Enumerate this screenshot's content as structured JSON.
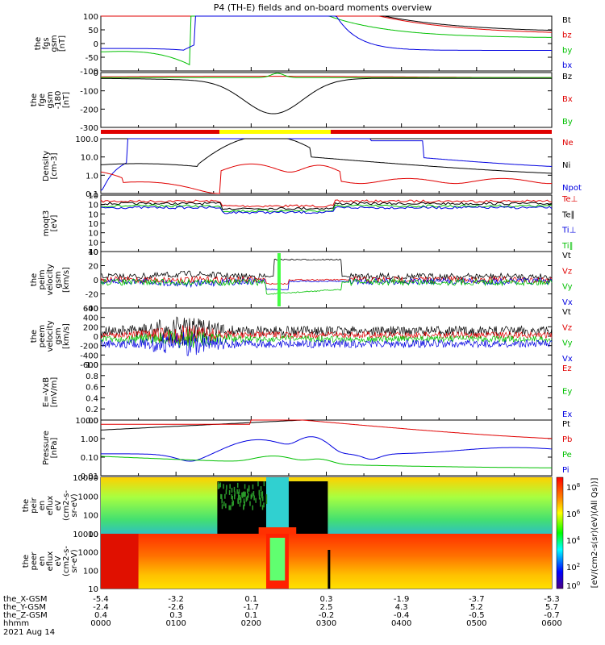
{
  "title": "P4 (TH-E) fields and on-board moments overview",
  "colors": {
    "black": "#000000",
    "red": "#e00000",
    "green": "#00c000",
    "blue": "#0000e0",
    "yellow": "#ffff00",
    "lgreen": "#66ff33"
  },
  "chart_data": {
    "type": "line",
    "x_ticks": [
      "0000",
      "0100",
      "0200",
      "0300",
      "0400",
      "0500",
      "0600"
    ],
    "x_range": [
      0,
      6
    ],
    "panels": [
      {
        "id": "p1",
        "ylabel": [
          "the",
          "fgs",
          "gsm",
          "[nT]"
        ],
        "yticks": [
          "100",
          "50",
          "0",
          "-50",
          "-100"
        ],
        "ylim": [
          -100,
          100
        ],
        "legend": [
          {
            "name": "Bt",
            "color": "#000000"
          },
          {
            "name": "bz",
            "color": "#e00000"
          },
          {
            "name": "by",
            "color": "#00c000"
          },
          {
            "name": "bx",
            "color": "#0000e0"
          }
        ]
      },
      {
        "id": "p2",
        "ylabel": [
          "the",
          "fge",
          "gsm",
          "-180",
          "[nT]"
        ],
        "yticks": [
          "0",
          "-100",
          "-200",
          "-300"
        ],
        "ylim": [
          -340,
          40
        ],
        "legend": [
          {
            "name": "Bz",
            "color": "#000000"
          },
          {
            "name": "Bx",
            "color": "#e00000"
          },
          {
            "name": "By",
            "color": "#00c000"
          }
        ]
      },
      {
        "id": "p3",
        "ylabel": [
          "Density",
          "[cm-3]"
        ],
        "yticks": [
          "100.0",
          "10.0",
          "1.0",
          "0.1"
        ],
        "log": true,
        "ylim": [
          0.1,
          200
        ],
        "legend": [
          {
            "name": "Ne",
            "color": "#e00000"
          },
          {
            "name": "Ni",
            "color": "#000000"
          },
          {
            "name": "Npot",
            "color": "#0000e0"
          }
        ]
      },
      {
        "id": "p4",
        "ylabel": [
          "moqt3",
          "[eV]"
        ],
        "yticks": [
          "10",
          "10",
          "10",
          "10",
          "10",
          "10",
          "10"
        ],
        "legend": [
          {
            "name": "Te⊥",
            "color": "#e00000"
          },
          {
            "name": "Te∥",
            "color": "#000000"
          },
          {
            "name": "Ti⊥",
            "color": "#0000e0"
          },
          {
            "name": "Ti∥",
            "color": "#00c000"
          }
        ]
      },
      {
        "id": "p5",
        "ylabel": [
          "the",
          "peim",
          "velocity",
          "gsm",
          "[km/s]"
        ],
        "yticks": [
          "40",
          "20",
          "0",
          "-20",
          "-40"
        ],
        "ylim": [
          -40,
          40
        ],
        "legend": [
          {
            "name": "Vt",
            "color": "#000000"
          },
          {
            "name": "Vz",
            "color": "#e00000"
          },
          {
            "name": "Vy",
            "color": "#00c000"
          },
          {
            "name": "Vx",
            "color": "#0000e0"
          }
        ]
      },
      {
        "id": "p6",
        "ylabel": [
          "the",
          "peem",
          "velocity",
          "gsm",
          "[km/s]"
        ],
        "yticks": [
          "600",
          "400",
          "200",
          "0",
          "-200",
          "-400",
          "-600"
        ],
        "ylim": [
          -600,
          600
        ],
        "legend": [
          {
            "name": "Vt",
            "color": "#000000"
          },
          {
            "name": "Vz",
            "color": "#e00000"
          },
          {
            "name": "Vy",
            "color": "#00c000"
          },
          {
            "name": "Vx",
            "color": "#0000e0"
          }
        ]
      },
      {
        "id": "p7",
        "ylabel": [
          "E=-VxB",
          "[mV/m]"
        ],
        "yticks": [
          "1.0",
          "0.8",
          "0.6",
          "0.4",
          "0.2",
          "0.0"
        ],
        "ylim": [
          0,
          1
        ],
        "legend": [
          {
            "name": "Ez",
            "color": "#e00000"
          },
          {
            "name": "Ey",
            "color": "#00c000"
          },
          {
            "name": "Ex",
            "color": "#0000e0"
          }
        ]
      },
      {
        "id": "p8",
        "ylabel": [
          "Pressure",
          "[nPa]"
        ],
        "yticks": [
          "10.00",
          "1.00",
          "0.10",
          "0.01"
        ],
        "log": true,
        "legend": [
          {
            "name": "Pt",
            "color": "#000000"
          },
          {
            "name": "Pb",
            "color": "#e00000"
          },
          {
            "name": "Pe",
            "color": "#00c000"
          },
          {
            "name": "Pi",
            "color": "#0000e0"
          }
        ]
      },
      {
        "id": "p9",
        "ylabel": [
          "the",
          "peir",
          "en",
          "eflux",
          "eV",
          "(cm2-s-",
          "sr-eV)"
        ],
        "yticks": [
          "10000",
          "1000",
          "100",
          "10"
        ]
      },
      {
        "id": "p10",
        "ylabel": [
          "the",
          "peer",
          "en",
          "eflux",
          "eV",
          "(cm2-s-",
          "sr-eV)"
        ],
        "yticks": [
          "10000",
          "1000",
          "100",
          "10"
        ]
      }
    ],
    "colorbar": {
      "label": "[eV/(cm2-s(sr)(eV)(All Qs))]",
      "ticks": [
        "10",
        "10",
        "10",
        "10"
      ],
      "exps": [
        "8",
        "6",
        "4",
        "2"
      ],
      "bottom": "10",
      "bottom_exp": "0"
    },
    "ephemeris": {
      "rows": [
        {
          "label": "the_X-GSM",
          "values": [
            "-5.4",
            "-3.2",
            "0.1",
            "0.3",
            "-1.9",
            "-3.7",
            "-5.3"
          ]
        },
        {
          "label": "the_Y-GSM",
          "values": [
            "-2.4",
            "-2.6",
            "-1.7",
            "2.5",
            "4.3",
            "5.2",
            "5.7"
          ]
        },
        {
          "label": "the_Z-GSM",
          "values": [
            "0.4",
            "0.3",
            "0.1",
            "-0.2",
            "-0.4",
            "-0.5",
            "-0.7"
          ]
        },
        {
          "label": "hhmm",
          "values": [
            "0000",
            "0100",
            "0200",
            "0300",
            "0400",
            "0500",
            "0600"
          ]
        }
      ],
      "date": "2021 Aug 14"
    }
  }
}
